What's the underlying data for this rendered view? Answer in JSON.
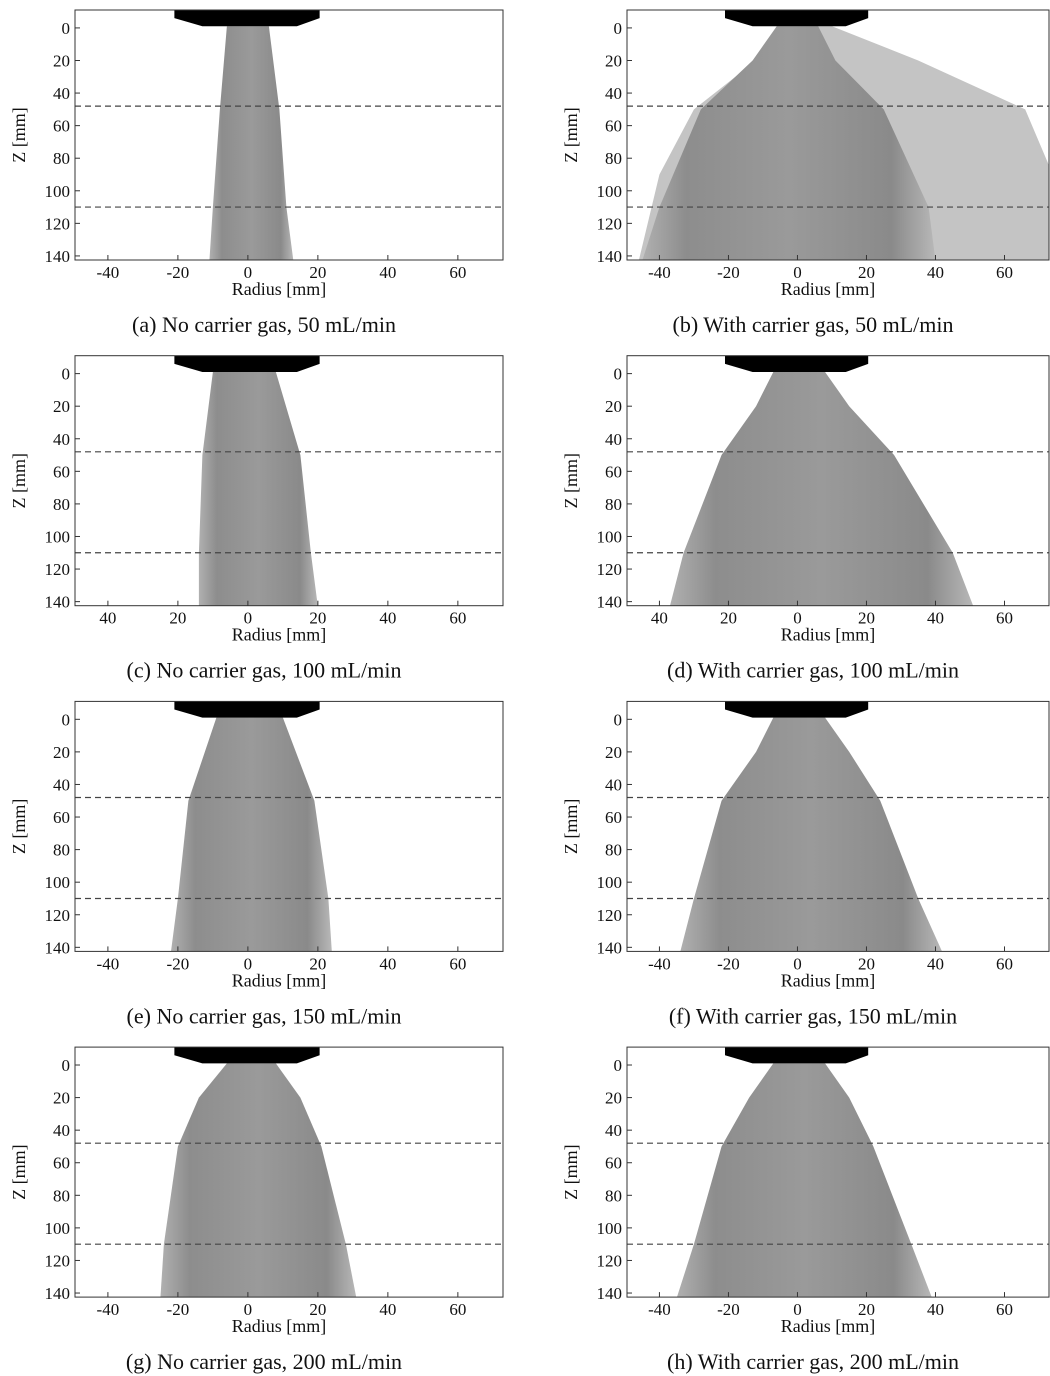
{
  "chart_data": [
    {
      "type": "image",
      "caption": "(a) No carrier gas, 50 mL/min",
      "xlabel": "Radius [mm]",
      "ylabel": "Z [mm]",
      "xlim": [
        -49.4,
        72.9
      ],
      "ylim": [
        -11,
        142.5
      ],
      "xticks": [
        -40,
        -20,
        0,
        20,
        40,
        60
      ],
      "yticks": [
        0,
        20,
        40,
        60,
        80,
        100,
        120,
        140
      ],
      "hlines": [
        48,
        110
      ],
      "line_color": "#444"
    },
    {
      "type": "image",
      "caption": "(b) With carrier gas, 50 mL/min",
      "xlabel": "Radius [mm]",
      "ylabel": "Z [mm]",
      "xlim": [
        -49.4,
        72.9
      ],
      "ylim": [
        -11,
        142.5
      ],
      "xticks": [
        -40,
        -20,
        0,
        20,
        40,
        60
      ],
      "yticks": [
        0,
        20,
        40,
        60,
        80,
        100,
        120,
        140
      ],
      "hlines": [
        48,
        110
      ],
      "line_color": "#444"
    },
    {
      "type": "image",
      "caption": "(c) No carrier gas, 100 mL/min",
      "xlabel": "Radius [mm]",
      "ylabel": "Z [mm]",
      "xlim": [
        -49.4,
        72.9
      ],
      "ylim": [
        -11,
        142.5
      ],
      "xticks": [
        {
          "value": -40,
          "label": "40"
        },
        {
          "value": -20,
          "label": "20"
        },
        0,
        20,
        40,
        60
      ],
      "yticks": [
        0,
        20,
        40,
        60,
        80,
        100,
        120,
        140
      ],
      "hlines": [
        48,
        110
      ],
      "line_color": "#444"
    },
    {
      "type": "image",
      "caption": "(d) With carrier gas, 100 mL/min",
      "xlabel": "Radius [mm]",
      "ylabel": "Z [mm]",
      "xlim": [
        -49.4,
        72.9
      ],
      "ylim": [
        -11,
        142.5
      ],
      "xticks": [
        {
          "value": -40,
          "label": "40"
        },
        {
          "value": -20,
          "label": "20"
        },
        0,
        20,
        40,
        60
      ],
      "yticks": [
        0,
        20,
        40,
        60,
        80,
        100,
        120,
        140
      ],
      "hlines": [
        48,
        110
      ],
      "line_color": "#444"
    },
    {
      "type": "image",
      "caption": "(e) No carrier gas, 150 mL/min",
      "xlabel": "Radius [mm]",
      "ylabel": "Z [mm]",
      "xlim": [
        -49.4,
        72.9
      ],
      "ylim": [
        -11,
        142.5
      ],
      "xticks": [
        -40,
        -20,
        0,
        20,
        40,
        60
      ],
      "yticks": [
        0,
        20,
        40,
        60,
        80,
        100,
        120,
        140
      ],
      "hlines": [
        48,
        110
      ],
      "line_color": "#444"
    },
    {
      "type": "image",
      "caption": "(f) With carrier gas, 150 mL/min",
      "xlabel": "Radius [mm]",
      "ylabel": "Z [mm]",
      "xlim": [
        -49.4,
        72.9
      ],
      "ylim": [
        -11,
        142.5
      ],
      "xticks": [
        -40,
        -20,
        0,
        20,
        40,
        60
      ],
      "yticks": [
        0,
        20,
        40,
        60,
        80,
        100,
        120,
        140
      ],
      "hlines": [
        48,
        110
      ],
      "line_color": "#444"
    },
    {
      "type": "image",
      "caption": "(g) No carrier gas, 200 mL/min",
      "xlabel": "Radius [mm]",
      "ylabel": "Z [mm]",
      "xlim": [
        -49.4,
        72.9
      ],
      "ylim": [
        -11,
        142.5
      ],
      "xticks": [
        -40,
        -20,
        0,
        20,
        40,
        60
      ],
      "yticks": [
        0,
        20,
        40,
        60,
        80,
        100,
        120,
        140
      ],
      "hlines": [
        48,
        110
      ],
      "line_color": "#444"
    },
    {
      "type": "image",
      "caption": "(h) With carrier gas, 200 mL/min",
      "xlabel": "Radius [mm]",
      "ylabel": "Z [mm]",
      "xlim": [
        -49.4,
        72.9
      ],
      "ylim": [
        -11,
        142.5
      ],
      "xticks": [
        -40,
        -20,
        0,
        20,
        40,
        60
      ],
      "yticks": [
        0,
        20,
        40,
        60,
        80,
        100,
        120,
        140
      ],
      "hlines": [
        48,
        110
      ],
      "line_color": "#444"
    }
  ]
}
